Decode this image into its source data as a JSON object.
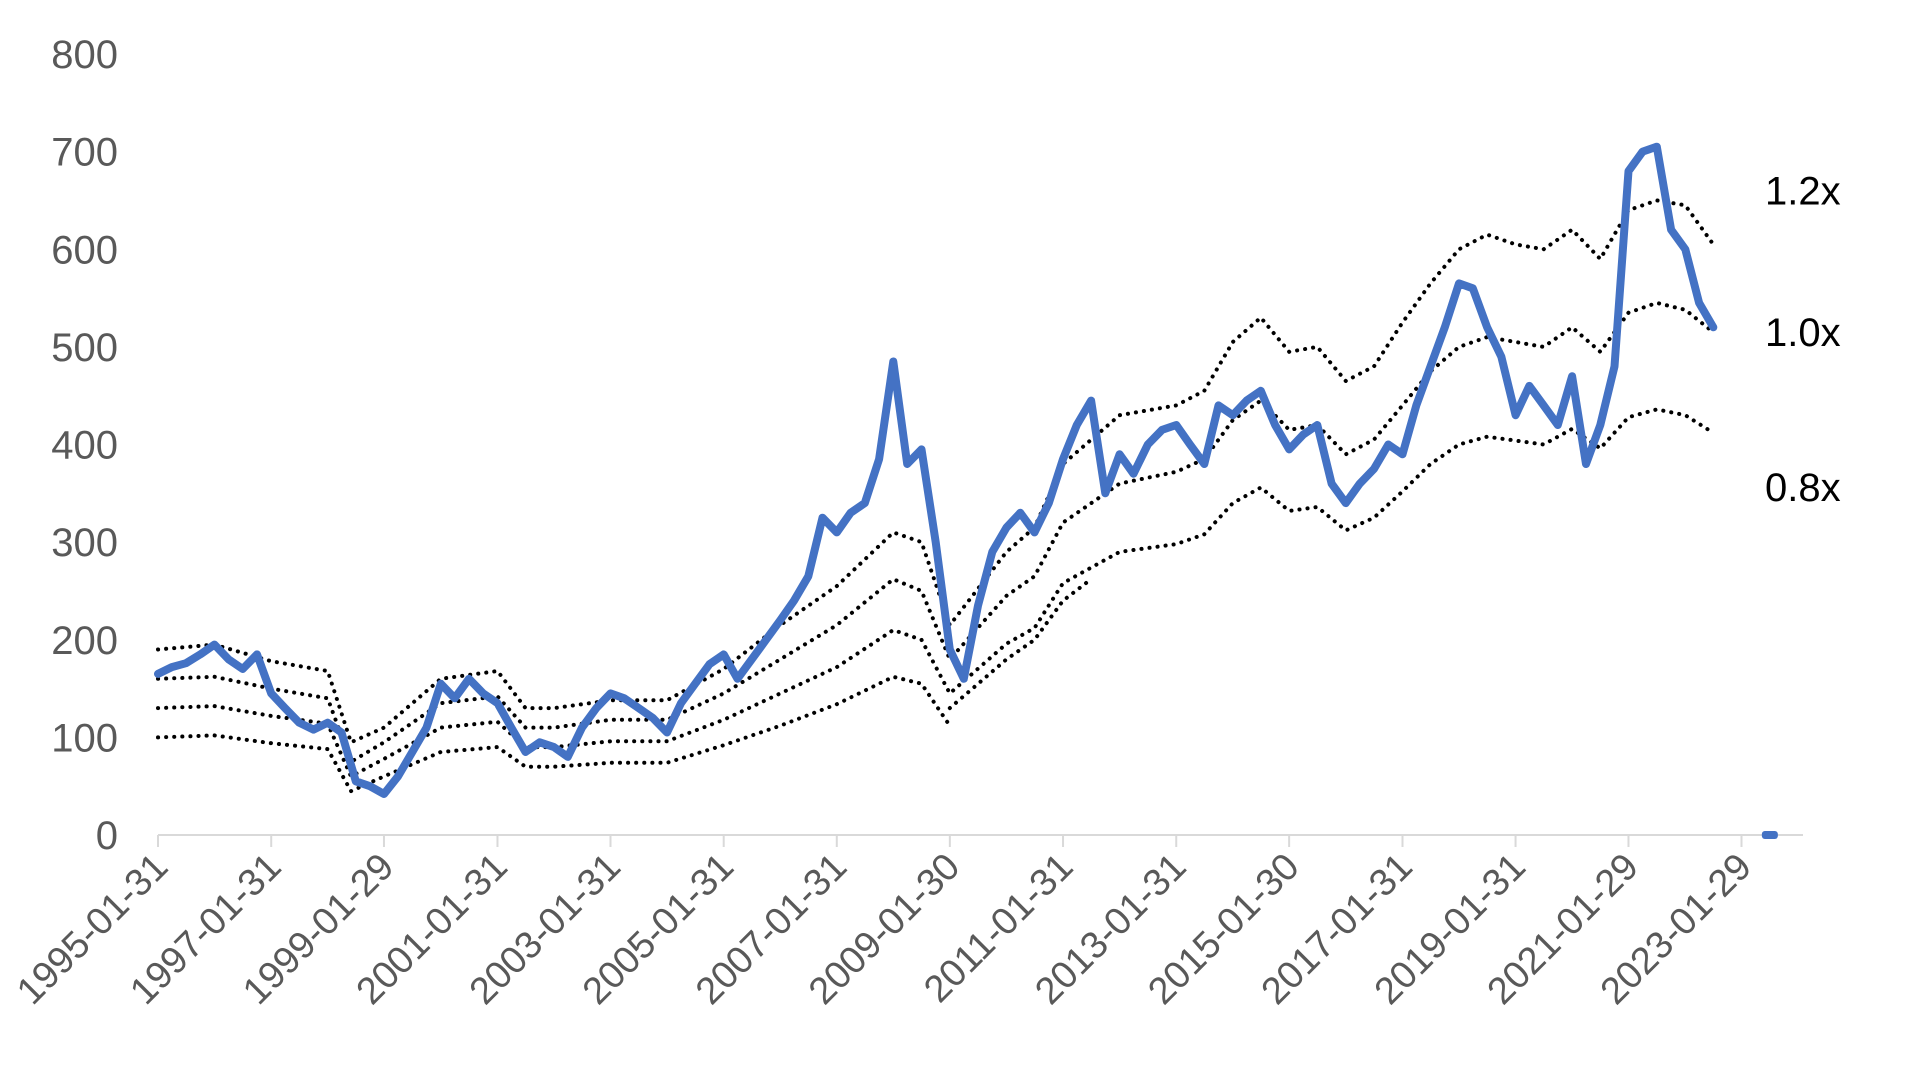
{
  "chart_data": {
    "type": "line",
    "title": "",
    "xlabel": "",
    "ylabel": "",
    "ylim": [
      0,
      800
    ],
    "yticks": [
      0,
      100,
      200,
      300,
      400,
      500,
      600,
      700,
      800
    ],
    "xticks": [
      "1995-01-31",
      "1997-01-31",
      "1999-01-29",
      "2001-01-31",
      "2003-01-31",
      "2005-01-31",
      "2007-01-31",
      "2009-01-30",
      "2011-01-31",
      "2013-01-31",
      "2015-01-30",
      "2017-01-31",
      "2019-01-31",
      "2021-01-29",
      "2023-01-29"
    ],
    "grid": false,
    "legend": "none",
    "band_labels": [
      "1.2x",
      "1.0x",
      "0.8x"
    ],
    "colors": {
      "price": "#4472C4",
      "bands": "#000000",
      "axis": "#D9D9D9",
      "text": "#595959"
    },
    "series": [
      {
        "role": "price",
        "points": [
          [
            "1995-01-31",
            165
          ],
          [
            "1995-04-30",
            172
          ],
          [
            "1995-07-31",
            176
          ],
          [
            "1995-10-31",
            185
          ],
          [
            "1996-01-31",
            195
          ],
          [
            "1996-04-30",
            180
          ],
          [
            "1996-07-31",
            170
          ],
          [
            "1996-10-31",
            185
          ],
          [
            "1997-01-31",
            145
          ],
          [
            "1997-04-30",
            130
          ],
          [
            "1997-07-31",
            115
          ],
          [
            "1997-10-31",
            108
          ],
          [
            "1998-01-31",
            115
          ],
          [
            "1998-04-30",
            105
          ],
          [
            "1998-07-31",
            55
          ],
          [
            "1998-10-31",
            50
          ],
          [
            "1999-01-29",
            42
          ],
          [
            "1999-04-30",
            60
          ],
          [
            "1999-07-31",
            85
          ],
          [
            "1999-10-31",
            110
          ],
          [
            "2000-01-31",
            155
          ],
          [
            "2000-04-30",
            140
          ],
          [
            "2000-07-31",
            160
          ],
          [
            "2000-10-31",
            145
          ],
          [
            "2001-01-31",
            135
          ],
          [
            "2001-04-30",
            110
          ],
          [
            "2001-07-31",
            85
          ],
          [
            "2001-10-31",
            95
          ],
          [
            "2002-01-31",
            90
          ],
          [
            "2002-04-30",
            80
          ],
          [
            "2002-07-31",
            110
          ],
          [
            "2002-10-31",
            130
          ],
          [
            "2003-01-31",
            145
          ],
          [
            "2003-04-30",
            140
          ],
          [
            "2003-07-31",
            130
          ],
          [
            "2003-10-31",
            120
          ],
          [
            "2004-01-31",
            105
          ],
          [
            "2004-04-30",
            135
          ],
          [
            "2004-07-31",
            155
          ],
          [
            "2004-10-31",
            175
          ],
          [
            "2005-01-31",
            185
          ],
          [
            "2005-04-30",
            160
          ],
          [
            "2005-07-31",
            180
          ],
          [
            "2005-10-31",
            200
          ],
          [
            "2006-01-31",
            220
          ],
          [
            "2006-04-30",
            240
          ],
          [
            "2006-07-31",
            265
          ],
          [
            "2006-10-31",
            325
          ],
          [
            "2007-01-31",
            310
          ],
          [
            "2007-04-30",
            330
          ],
          [
            "2007-07-31",
            340
          ],
          [
            "2007-10-31",
            385
          ],
          [
            "2008-01-31",
            485
          ],
          [
            "2008-04-30",
            380
          ],
          [
            "2008-07-31",
            395
          ],
          [
            "2008-10-31",
            300
          ],
          [
            "2009-01-30",
            190
          ],
          [
            "2009-04-30",
            160
          ],
          [
            "2009-07-31",
            235
          ],
          [
            "2009-10-31",
            290
          ],
          [
            "2010-01-31",
            315
          ],
          [
            "2010-04-30",
            330
          ],
          [
            "2010-07-31",
            310
          ],
          [
            "2010-10-31",
            340
          ],
          [
            "2011-01-31",
            385
          ],
          [
            "2011-04-30",
            420
          ],
          [
            "2011-07-31",
            445
          ],
          [
            "2011-10-31",
            350
          ],
          [
            "2012-01-31",
            390
          ],
          [
            "2012-04-30",
            370
          ],
          [
            "2012-07-31",
            400
          ],
          [
            "2012-10-31",
            415
          ],
          [
            "2013-01-31",
            420
          ],
          [
            "2013-04-30",
            400
          ],
          [
            "2013-07-31",
            380
          ],
          [
            "2013-10-31",
            440
          ],
          [
            "2014-01-31",
            430
          ],
          [
            "2014-04-30",
            445
          ],
          [
            "2014-07-31",
            455
          ],
          [
            "2014-10-31",
            420
          ],
          [
            "2015-01-30",
            395
          ],
          [
            "2015-04-30",
            410
          ],
          [
            "2015-07-31",
            420
          ],
          [
            "2015-10-31",
            360
          ],
          [
            "2016-01-31",
            340
          ],
          [
            "2016-04-30",
            360
          ],
          [
            "2016-07-31",
            375
          ],
          [
            "2016-10-31",
            400
          ],
          [
            "2017-01-31",
            390
          ],
          [
            "2017-04-30",
            440
          ],
          [
            "2017-07-31",
            480
          ],
          [
            "2017-10-31",
            520
          ],
          [
            "2018-01-31",
            565
          ],
          [
            "2018-04-30",
            560
          ],
          [
            "2018-07-31",
            520
          ],
          [
            "2018-10-31",
            490
          ],
          [
            "2019-01-31",
            430
          ],
          [
            "2019-04-30",
            460
          ],
          [
            "2019-07-31",
            440
          ],
          [
            "2019-10-31",
            420
          ],
          [
            "2020-01-31",
            470
          ],
          [
            "2020-04-30",
            380
          ],
          [
            "2020-07-31",
            420
          ],
          [
            "2020-10-31",
            480
          ],
          [
            "2021-01-29",
            680
          ],
          [
            "2021-04-30",
            700
          ],
          [
            "2021-07-31",
            705
          ],
          [
            "2021-10-31",
            620
          ],
          [
            "2022-01-31",
            600
          ],
          [
            "2022-04-30",
            545
          ],
          [
            "2022-07-31",
            520
          ]
        ]
      },
      {
        "role": "band",
        "label": "1.2x",
        "points": [
          [
            "1995-01-31",
            190
          ],
          [
            "1996-01-31",
            195
          ],
          [
            "1997-01-31",
            178
          ],
          [
            "1998-01-31",
            168
          ],
          [
            "1998-06-30",
            95
          ],
          [
            "1999-01-29",
            110
          ],
          [
            "2000-01-31",
            160
          ],
          [
            "2001-01-31",
            168
          ],
          [
            "2001-07-31",
            130
          ],
          [
            "2002-01-31",
            130
          ],
          [
            "2003-01-31",
            138
          ],
          [
            "2004-01-31",
            138
          ],
          [
            "2005-01-31",
            170
          ],
          [
            "2006-01-31",
            215
          ],
          [
            "2007-01-31",
            255
          ],
          [
            "2008-01-31",
            310
          ],
          [
            "2008-07-31",
            300
          ],
          [
            "2009-01-30",
            215
          ],
          [
            "2010-01-31",
            290
          ],
          [
            "2010-07-31",
            315
          ],
          [
            "2011-01-31",
            380
          ],
          [
            "2012-01-31",
            430
          ],
          [
            "2013-01-31",
            440
          ],
          [
            "2013-07-31",
            455
          ],
          [
            "2014-01-31",
            505
          ],
          [
            "2014-07-31",
            530
          ],
          [
            "2015-01-30",
            495
          ],
          [
            "2015-07-31",
            500
          ],
          [
            "2016-01-31",
            465
          ],
          [
            "2016-07-31",
            480
          ],
          [
            "2017-01-31",
            525
          ],
          [
            "2017-07-31",
            565
          ],
          [
            "2018-01-31",
            600
          ],
          [
            "2018-07-31",
            615
          ],
          [
            "2019-01-31",
            605
          ],
          [
            "2019-07-31",
            600
          ],
          [
            "2020-01-31",
            620
          ],
          [
            "2020-07-31",
            590
          ],
          [
            "2021-01-29",
            640
          ],
          [
            "2021-07-31",
            650
          ],
          [
            "2022-01-31",
            645
          ],
          [
            "2022-07-31",
            605
          ]
        ]
      },
      {
        "role": "band",
        "label": "1.0x",
        "points": [
          [
            "1995-01-31",
            160
          ],
          [
            "1996-01-31",
            162
          ],
          [
            "1997-01-31",
            150
          ],
          [
            "1998-01-31",
            140
          ],
          [
            "1998-06-30",
            75
          ],
          [
            "1999-01-29",
            95
          ],
          [
            "2000-01-31",
            135
          ],
          [
            "2001-01-31",
            142
          ],
          [
            "2001-07-31",
            110
          ],
          [
            "2002-01-31",
            110
          ],
          [
            "2003-01-31",
            118
          ],
          [
            "2004-01-31",
            118
          ],
          [
            "2005-01-31",
            145
          ],
          [
            "2006-01-31",
            180
          ],
          [
            "2007-01-31",
            215
          ],
          [
            "2008-01-31",
            262
          ],
          [
            "2008-07-31",
            250
          ],
          [
            "2009-01-30",
            180
          ],
          [
            "2010-01-31",
            245
          ],
          [
            "2010-07-31",
            265
          ],
          [
            "2011-01-31",
            320
          ],
          [
            "2012-01-31",
            360
          ],
          [
            "2013-01-31",
            372
          ],
          [
            "2013-07-31",
            385
          ],
          [
            "2014-01-31",
            425
          ],
          [
            "2014-07-31",
            445
          ],
          [
            "2015-01-30",
            415
          ],
          [
            "2015-07-31",
            420
          ],
          [
            "2016-01-31",
            390
          ],
          [
            "2016-07-31",
            405
          ],
          [
            "2017-01-31",
            440
          ],
          [
            "2017-07-31",
            475
          ],
          [
            "2018-01-31",
            500
          ],
          [
            "2018-07-31",
            510
          ],
          [
            "2019-01-31",
            505
          ],
          [
            "2019-07-31",
            500
          ],
          [
            "2020-01-31",
            520
          ],
          [
            "2020-07-31",
            495
          ],
          [
            "2021-01-29",
            535
          ],
          [
            "2021-07-31",
            545
          ],
          [
            "2022-01-31",
            538
          ],
          [
            "2022-07-31",
            515
          ]
        ]
      },
      {
        "role": "band",
        "label": "0.8x",
        "points": [
          [
            "1995-01-31",
            130
          ],
          [
            "1996-01-31",
            132
          ],
          [
            "1997-01-31",
            122
          ],
          [
            "1998-01-31",
            114
          ],
          [
            "1998-06-30",
            60
          ],
          [
            "1999-01-29",
            78
          ],
          [
            "2000-01-31",
            110
          ],
          [
            "2001-01-31",
            116
          ],
          [
            "2001-07-31",
            90
          ],
          [
            "2002-01-31",
            90
          ],
          [
            "2003-01-31",
            96
          ],
          [
            "2004-01-31",
            96
          ],
          [
            "2005-01-31",
            118
          ],
          [
            "2006-01-31",
            145
          ],
          [
            "2007-01-31",
            172
          ],
          [
            "2008-01-31",
            210
          ],
          [
            "2008-07-31",
            200
          ],
          [
            "2009-01-30",
            145
          ],
          [
            "2010-01-31",
            196
          ],
          [
            "2010-07-31",
            212
          ],
          [
            "2011-01-31",
            258
          ],
          [
            "2012-01-31",
            290
          ],
          [
            "2013-01-31",
            298
          ],
          [
            "2013-07-31",
            308
          ],
          [
            "2014-01-31",
            340
          ],
          [
            "2014-07-31",
            356
          ],
          [
            "2015-01-30",
            332
          ],
          [
            "2015-07-31",
            336
          ],
          [
            "2016-01-31",
            312
          ],
          [
            "2016-07-31",
            325
          ],
          [
            "2017-01-31",
            352
          ],
          [
            "2017-07-31",
            380
          ],
          [
            "2018-01-31",
            400
          ],
          [
            "2018-07-31",
            408
          ],
          [
            "2019-01-31",
            404
          ],
          [
            "2019-07-31",
            400
          ],
          [
            "2020-01-31",
            416
          ],
          [
            "2020-07-31",
            396
          ],
          [
            "2021-01-29",
            428
          ],
          [
            "2021-07-31",
            436
          ],
          [
            "2022-01-31",
            430
          ],
          [
            "2022-07-31",
            412
          ]
        ]
      },
      {
        "role": "band",
        "label": "",
        "points": [
          [
            "1995-01-31",
            100
          ],
          [
            "1996-01-31",
            102
          ],
          [
            "1997-01-31",
            94
          ],
          [
            "1998-01-31",
            88
          ],
          [
            "1998-06-30",
            45
          ],
          [
            "1999-01-29",
            60
          ],
          [
            "2000-01-31",
            85
          ],
          [
            "2001-01-31",
            90
          ],
          [
            "2001-07-31",
            70
          ],
          [
            "2002-01-31",
            70
          ],
          [
            "2003-01-31",
            74
          ],
          [
            "2004-01-31",
            74
          ],
          [
            "2005-01-31",
            92
          ],
          [
            "2006-01-31",
            112
          ],
          [
            "2007-01-31",
            134
          ],
          [
            "2008-01-31",
            162
          ],
          [
            "2008-07-31",
            155
          ],
          [
            "2009-01-30",
            112
          ]
        ]
      },
      {
        "role": "band",
        "label": "",
        "points": [
          [
            "2009-01-30",
            130
          ],
          [
            "2010-01-31",
            180
          ],
          [
            "2010-07-31",
            200
          ],
          [
            "2011-01-31",
            240
          ],
          [
            "2011-07-31",
            262
          ]
        ]
      },
      {
        "role": "marker",
        "points": [
          [
            "2023-07-31",
            0
          ]
        ]
      }
    ]
  }
}
